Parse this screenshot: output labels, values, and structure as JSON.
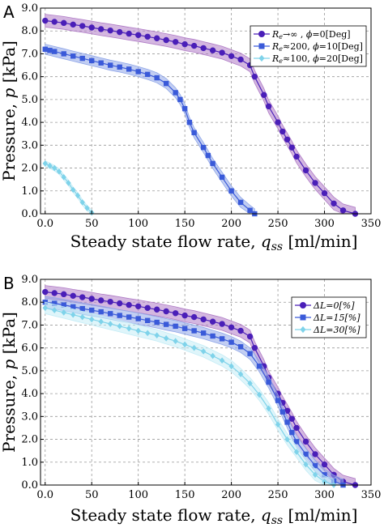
{
  "chart_data": [
    {
      "type": "line",
      "panel_label": "A",
      "xlabel": "Steady state flow rate, q_ss [ml/min]",
      "ylabel": "Pressure, p [kPa]",
      "xlim": [
        -5,
        350
      ],
      "ylim": [
        0,
        9.0
      ],
      "xticks": [
        "0.0",
        "50",
        "100",
        "150",
        "200",
        "250",
        "300",
        "350"
      ],
      "yticks": [
        "0.0",
        "1.0",
        "2.0",
        "3.0",
        "4.0",
        "5.0",
        "6.0",
        "7.0",
        "8.0",
        "9.0"
      ],
      "grid": true,
      "legend_position": "top-right",
      "series": [
        {
          "name": "Re→∞ , φ=0[Deg]",
          "legend": {
            "pre": "R",
            "sub": "e",
            "post": "→∞ , ",
            "phi": "ϕ",
            "rest": "=0[Deg]"
          },
          "color": "#4a1fb8",
          "band_color": "#b07cc6",
          "marker": "circle",
          "x": [
            0,
            10,
            20,
            30,
            40,
            50,
            60,
            70,
            80,
            90,
            100,
            110,
            120,
            130,
            140,
            150,
            160,
            170,
            180,
            190,
            200,
            210,
            220,
            225,
            235,
            240,
            250,
            255,
            260,
            265,
            270,
            280,
            290,
            300,
            310,
            320,
            333
          ],
          "y": [
            8.45,
            8.4,
            8.35,
            8.28,
            8.22,
            8.15,
            8.08,
            8.02,
            7.95,
            7.88,
            7.82,
            7.75,
            7.68,
            7.6,
            7.52,
            7.42,
            7.35,
            7.25,
            7.15,
            7.05,
            6.9,
            6.75,
            6.5,
            6.0,
            5.2,
            4.7,
            4.0,
            3.6,
            3.25,
            2.9,
            2.5,
            1.9,
            1.35,
            0.9,
            0.45,
            0.15,
            0.0
          ],
          "band": 0.28
        },
        {
          "name": "Re≈200, φ=10[Deg]",
          "legend": {
            "pre": "R",
            "sub": "e",
            "post": "≈200, ",
            "phi": "ϕ",
            "rest": "=10[Deg]"
          },
          "color": "#3a5ad9",
          "band_color": "#8fa6e8",
          "marker": "square",
          "x": [
            0,
            5,
            10,
            20,
            30,
            40,
            50,
            60,
            70,
            80,
            90,
            100,
            110,
            120,
            130,
            140,
            145,
            150,
            155,
            160,
            170,
            175,
            180,
            190,
            200,
            210,
            220,
            225
          ],
          "y": [
            7.2,
            7.15,
            7.1,
            7.0,
            6.9,
            6.8,
            6.7,
            6.6,
            6.5,
            6.42,
            6.33,
            6.22,
            6.1,
            5.95,
            5.7,
            5.3,
            5.0,
            4.6,
            4.0,
            3.55,
            2.9,
            2.55,
            2.2,
            1.6,
            1.0,
            0.5,
            0.15,
            0.0
          ],
          "band": 0.22
        },
        {
          "name": "Re≈100, φ=20[Deg]",
          "legend": {
            "pre": "R",
            "sub": "e",
            "post": "≈100, ",
            "phi": "ϕ",
            "rest": "=20[Deg]"
          },
          "color": "#7fd3ea",
          "band_color": "#c4ecf6",
          "marker": "diamond",
          "x": [
            0,
            5,
            10,
            15,
            20,
            25,
            30,
            35,
            40,
            45,
            50
          ],
          "y": [
            2.2,
            2.1,
            2.0,
            1.85,
            1.6,
            1.35,
            1.05,
            0.8,
            0.5,
            0.25,
            0.05
          ],
          "band": 0.12
        }
      ]
    },
    {
      "type": "line",
      "panel_label": "B",
      "xlabel": "Steady state flow rate, q_ss [ml/min]",
      "ylabel": "Pressure, p [kPa]",
      "xlim": [
        -5,
        350
      ],
      "ylim": [
        0,
        9.0
      ],
      "xticks": [
        "0.0",
        "50",
        "100",
        "150",
        "200",
        "250",
        "300",
        "350"
      ],
      "yticks": [
        "0.0",
        "1.0",
        "2.0",
        "3.0",
        "4.0",
        "5.0",
        "6.0",
        "7.0",
        "8.0",
        "9.0"
      ],
      "grid": true,
      "legend_position": "top-right",
      "series": [
        {
          "name": "ΔL=0[%]",
          "legend": {
            "pre": "ΔL=0[%]",
            "sub": "",
            "post": "",
            "phi": "",
            "rest": ""
          },
          "color": "#4a1fb8",
          "band_color": "#b07cc6",
          "marker": "circle",
          "x": [
            0,
            10,
            20,
            30,
            40,
            50,
            60,
            70,
            80,
            90,
            100,
            110,
            120,
            130,
            140,
            150,
            160,
            170,
            180,
            190,
            200,
            210,
            220,
            225,
            235,
            240,
            250,
            255,
            260,
            265,
            270,
            280,
            290,
            300,
            310,
            320,
            333
          ],
          "y": [
            8.45,
            8.4,
            8.35,
            8.28,
            8.22,
            8.15,
            8.08,
            8.02,
            7.95,
            7.88,
            7.82,
            7.75,
            7.68,
            7.6,
            7.52,
            7.42,
            7.35,
            7.25,
            7.15,
            7.05,
            6.9,
            6.75,
            6.5,
            6.0,
            5.2,
            4.7,
            4.0,
            3.6,
            3.25,
            2.9,
            2.5,
            1.9,
            1.35,
            0.9,
            0.45,
            0.15,
            0.0
          ],
          "band": 0.28
        },
        {
          "name": "ΔL=15[%]",
          "legend": {
            "pre": "ΔL=15[%]",
            "sub": "",
            "post": "",
            "phi": "",
            "rest": ""
          },
          "color": "#3a5ad9",
          "band_color": "#8fa6e8",
          "marker": "square",
          "x": [
            0,
            10,
            20,
            30,
            40,
            50,
            60,
            70,
            80,
            90,
            100,
            110,
            120,
            130,
            140,
            150,
            160,
            170,
            180,
            190,
            200,
            210,
            220,
            230,
            240,
            250,
            255,
            260,
            265,
            270,
            280,
            290,
            300,
            310,
            320
          ],
          "y": [
            8.0,
            7.95,
            7.88,
            7.8,
            7.72,
            7.65,
            7.58,
            7.5,
            7.42,
            7.35,
            7.28,
            7.2,
            7.12,
            7.03,
            6.95,
            6.85,
            6.75,
            6.65,
            6.52,
            6.4,
            6.25,
            6.05,
            5.75,
            5.2,
            4.5,
            3.7,
            3.2,
            2.75,
            2.3,
            1.9,
            1.35,
            0.85,
            0.45,
            0.18,
            0.0
          ],
          "band": 0.25
        },
        {
          "name": "ΔL=30[%]",
          "legend": {
            "pre": "ΔL=30[%]",
            "sub": "",
            "post": "",
            "phi": "",
            "rest": ""
          },
          "color": "#7fd3ea",
          "band_color": "#c4ecf6",
          "marker": "diamond",
          "x": [
            0,
            10,
            20,
            30,
            40,
            50,
            60,
            70,
            80,
            90,
            100,
            110,
            120,
            130,
            140,
            150,
            160,
            170,
            180,
            190,
            200,
            210,
            220,
            230,
            240,
            250,
            260,
            270,
            280,
            290,
            300,
            310
          ],
          "y": [
            7.75,
            7.65,
            7.55,
            7.45,
            7.35,
            7.25,
            7.15,
            7.05,
            6.95,
            6.85,
            6.75,
            6.65,
            6.55,
            6.42,
            6.3,
            6.15,
            6.0,
            5.85,
            5.65,
            5.45,
            5.2,
            4.85,
            4.45,
            3.95,
            3.35,
            2.65,
            2.0,
            1.45,
            0.9,
            0.45,
            0.15,
            0.0
          ],
          "band": 0.25
        }
      ]
    }
  ]
}
